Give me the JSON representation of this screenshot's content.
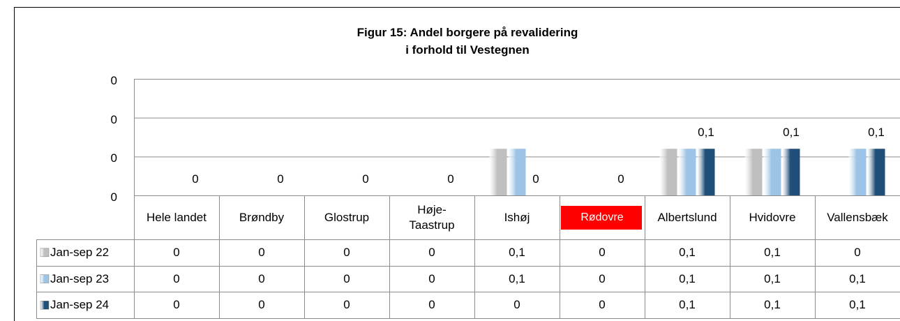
{
  "chart_data": {
    "type": "bar",
    "title": [
      "Figur 15: Andel borgere på revalidering",
      "i forhold til Vestegnen"
    ],
    "categories": [
      "Hele landet",
      "Brøndby",
      "Glostrup",
      "Høje-\nTaastrup",
      "Ishøj",
      "Rødovre",
      "Albertslund",
      "Hvidovre",
      "Vallensbæk"
    ],
    "series": [
      {
        "name": "Jan-sep 22",
        "color": "#bfbfbf",
        "values": [
          0,
          0,
          0,
          0,
          0.06,
          0,
          0.06,
          0.06,
          0
        ],
        "value_labels": [
          "0",
          "0",
          "0",
          "0",
          "0,1",
          "0",
          "0,1",
          "0,1",
          "0"
        ]
      },
      {
        "name": "Jan-sep 23",
        "color": "#9dc3e6",
        "values": [
          0,
          0,
          0,
          0,
          0.06,
          0,
          0.06,
          0.06,
          0.06
        ],
        "value_labels": [
          "0",
          "0",
          "0",
          "0",
          "0,1",
          "0",
          "0,1",
          "0,1",
          "0,1"
        ]
      },
      {
        "name": "Jan-sep 24",
        "color": "#1f4e79",
        "values": [
          0,
          0,
          0,
          0,
          0,
          0,
          0.06,
          0.06,
          0.06
        ],
        "value_labels": [
          "0",
          "0",
          "0",
          "0",
          "0",
          "0",
          "0,1",
          "0,1",
          "0,1"
        ]
      }
    ],
    "data_labels_series": "Jan-sep 24",
    "highlight_category": "Rødovre",
    "highlight_color": "#ff0000",
    "ylim": [
      0,
      0.15
    ],
    "yticks": [
      {
        "value": 0,
        "label": "0"
      },
      {
        "value": 0.05,
        "label": "0"
      },
      {
        "value": 0.1,
        "label": "0"
      },
      {
        "value": 0.15,
        "label": "0"
      }
    ],
    "grid": true,
    "data_table": true
  }
}
